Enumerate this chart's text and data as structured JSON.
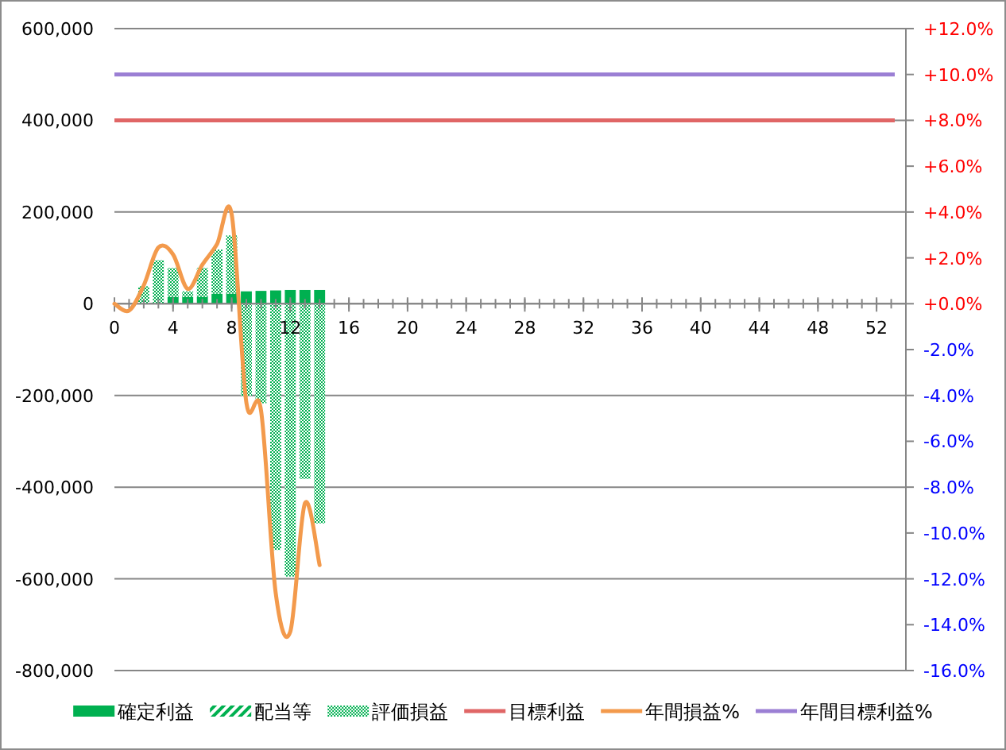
{
  "chart_data": {
    "type": "bar",
    "stacked": true,
    "x": [
      0,
      1,
      2,
      3,
      4,
      5,
      6,
      7,
      8,
      9,
      10,
      11,
      12,
      13,
      14
    ],
    "series": [
      {
        "name": "確定利益",
        "color": "#00b050",
        "values": [
          null,
          null,
          null,
          null,
          15000,
          15000,
          15000,
          22000,
          22000,
          27000,
          28000,
          29000,
          30000,
          30000,
          30000
        ]
      },
      {
        "name": "配当等",
        "color": "#00b050",
        "values": [
          null,
          null,
          null,
          null,
          null,
          null,
          null,
          null,
          null,
          null,
          null,
          null,
          null,
          null,
          null
        ]
      },
      {
        "name": "評価損益",
        "color": "#00b050",
        "values": [
          null,
          null,
          38000,
          95000,
          63000,
          12000,
          63000,
          96000,
          127000,
          -201000,
          -217000,
          -537000,
          -595000,
          -382000,
          -479000
        ]
      },
      {
        "name": "年間損益%",
        "type": "line",
        "axis": "y2",
        "color": "#f39a4c",
        "values": [
          0,
          -0.3,
          0.8,
          2.45,
          2.15,
          0.65,
          1.7,
          2.6,
          3.9,
          -4.3,
          -4.65,
          -12.6,
          -14.3,
          -8.7,
          -11.4
        ]
      }
    ],
    "ref_lines": [
      {
        "axis": "y",
        "value": 400000,
        "label": "目標利益",
        "color": "#e06666"
      },
      {
        "axis": "y2",
        "value": 10,
        "label": "年間目標利益%",
        "color": "#9b7fd4"
      }
    ],
    "xlim": [
      0,
      54
    ],
    "xticks": [
      0,
      4,
      8,
      12,
      16,
      20,
      24,
      28,
      32,
      36,
      40,
      44,
      48,
      52
    ],
    "ylim": [
      -800000,
      600000
    ],
    "yticks": [
      {
        "value": -800000,
        "label": "-800,000"
      },
      {
        "value": -600000,
        "label": "-600,000"
      },
      {
        "value": -400000,
        "label": "-400,000"
      },
      {
        "value": -200000,
        "label": "-200,000"
      },
      {
        "value": 0,
        "label": "0"
      },
      {
        "value": 200000,
        "label": "200,000"
      },
      {
        "value": 400000,
        "label": "400,000"
      },
      {
        "value": 600000,
        "label": "600,000"
      }
    ],
    "y2lim": [
      -16,
      12
    ],
    "y2ticks": [
      {
        "value": -16,
        "label": "-16.0%"
      },
      {
        "value": -14,
        "label": "-14.0%"
      },
      {
        "value": -12,
        "label": "-12.0%"
      },
      {
        "value": -10,
        "label": "-10.0%"
      },
      {
        "value": -8,
        "label": "-8.0%"
      },
      {
        "value": -6,
        "label": "-6.0%"
      },
      {
        "value": -4,
        "label": "-4.0%"
      },
      {
        "value": -2,
        "label": "-2.0%"
      },
      {
        "value": 0,
        "label": "+0.0%"
      },
      {
        "value": 2,
        "label": "+2.0%"
      },
      {
        "value": 4,
        "label": "+4.0%"
      },
      {
        "value": 6,
        "label": "+6.0%"
      },
      {
        "value": 8,
        "label": "+8.0%"
      },
      {
        "value": 10,
        "label": "+10.0%"
      },
      {
        "value": 12,
        "label": "+12.0%"
      }
    ],
    "grid": "y",
    "legend": "bottom"
  }
}
